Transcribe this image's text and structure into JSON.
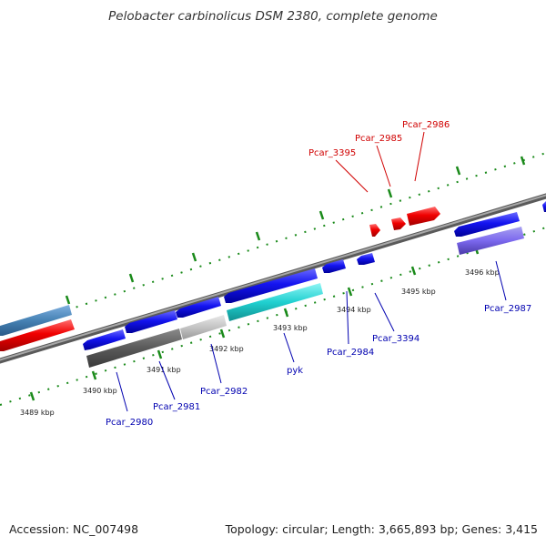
{
  "title": "Pelobacter carbinolicus DSM 2380, complete genome",
  "footer": {
    "accession": "Accession: NC_007498",
    "summary": "Topology: circular; Length: 3,665,893 bp; Genes: 3,415"
  },
  "colors": {
    "forward_cds": "#ff0000",
    "reverse_cds": "#0000ee",
    "outer_gene": "#4682b4",
    "tick": "#1a8a1a",
    "backbone": "#888888",
    "red_label": "#d00000",
    "blue_label": "#0000b0"
  },
  "tick_labels": [
    "3489 kbp",
    "3490 kbp",
    "3491 kbp",
    "3492 kbp",
    "3493 kbp",
    "3494 kbp",
    "3495 kbp",
    "3496 kbp"
  ],
  "genes_top": [
    "Pcar_3395",
    "Pcar_2985",
    "Pcar_2986"
  ],
  "genes_bottom": [
    "Pcar_2980",
    "Pcar_2981",
    "Pcar_2982",
    "pyk",
    "Pcar_2984",
    "Pcar_3394",
    "Pcar_2987"
  ]
}
